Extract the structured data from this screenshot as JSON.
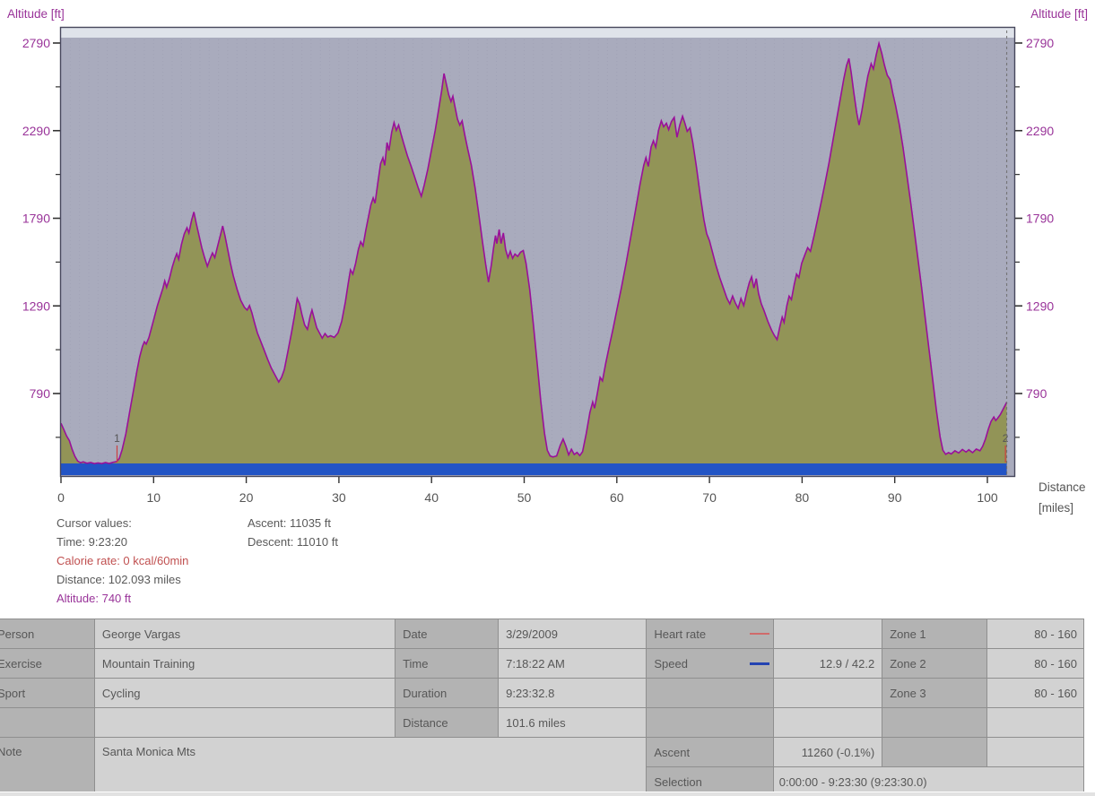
{
  "chart": {
    "y_axis_title_left": "Altitude [ft]",
    "y_axis_title_right": "Altitude [ft]",
    "x_axis_title_line1": "Distance",
    "x_axis_title_line2": "[miles]"
  },
  "chart_data": {
    "type": "area",
    "series_name": "Altitude",
    "title": "",
    "xlabel": "Distance [miles]",
    "ylabel": "Altitude [ft]",
    "x_ticks": [
      0,
      10,
      20,
      30,
      40,
      50,
      60,
      70,
      80,
      90,
      100
    ],
    "y_ticks": [
      790,
      1290,
      1790,
      2290,
      2790
    ],
    "y_minor_ticks": [
      540,
      1040,
      1540,
      2040,
      2540
    ],
    "x_range": [
      0,
      102.9
    ],
    "y_range_at_plot": [
      325,
      2880
    ],
    "grid": "faint dotted vertical",
    "legend_position": "none",
    "cursor_mile": 102.093,
    "cursor_altitude_ft": 740,
    "lap_markers": [
      {
        "label": "1",
        "mile": 6.05
      },
      {
        "label": "2",
        "mile": 101.95
      }
    ],
    "profile_mile_ft": [
      [
        0,
        620
      ],
      [
        0.3,
        585
      ],
      [
        0.6,
        548
      ],
      [
        0.9,
        522
      ],
      [
        1.2,
        472
      ],
      [
        1.5,
        432
      ],
      [
        1.8,
        405
      ],
      [
        2.1,
        395
      ],
      [
        2.4,
        400
      ],
      [
        2.8,
        392
      ],
      [
        3.2,
        396
      ],
      [
        3.6,
        390
      ],
      [
        4,
        394
      ],
      [
        4.4,
        390
      ],
      [
        4.8,
        396
      ],
      [
        5.2,
        391
      ],
      [
        5.6,
        397
      ],
      [
        6,
        402
      ],
      [
        6.3,
        420
      ],
      [
        6.6,
        470
      ],
      [
        7,
        560
      ],
      [
        7.4,
        680
      ],
      [
        7.8,
        800
      ],
      [
        8.2,
        920
      ],
      [
        8.5,
        1000
      ],
      [
        8.8,
        1060
      ],
      [
        9,
        1085
      ],
      [
        9.2,
        1072
      ],
      [
        9.5,
        1110
      ],
      [
        10,
        1210
      ],
      [
        10.4,
        1290
      ],
      [
        10.7,
        1340
      ],
      [
        11,
        1390
      ],
      [
        11.2,
        1432
      ],
      [
        11.4,
        1396
      ],
      [
        11.7,
        1446
      ],
      [
        12,
        1510
      ],
      [
        12.3,
        1562
      ],
      [
        12.5,
        1588
      ],
      [
        12.7,
        1556
      ],
      [
        13,
        1640
      ],
      [
        13.3,
        1700
      ],
      [
        13.6,
        1736
      ],
      [
        13.8,
        1706
      ],
      [
        14.1,
        1780
      ],
      [
        14.35,
        1826
      ],
      [
        14.6,
        1762
      ],
      [
        14.9,
        1692
      ],
      [
        15.2,
        1622
      ],
      [
        15.5,
        1566
      ],
      [
        15.8,
        1516
      ],
      [
        16.1,
        1560
      ],
      [
        16.35,
        1592
      ],
      [
        16.6,
        1566
      ],
      [
        16.9,
        1630
      ],
      [
        17.2,
        1692
      ],
      [
        17.45,
        1746
      ],
      [
        17.7,
        1692
      ],
      [
        18,
        1612
      ],
      [
        18.3,
        1532
      ],
      [
        18.6,
        1462
      ],
      [
        19,
        1386
      ],
      [
        19.4,
        1322
      ],
      [
        19.8,
        1282
      ],
      [
        20.1,
        1266
      ],
      [
        20.35,
        1292
      ],
      [
        20.6,
        1252
      ],
      [
        20.9,
        1192
      ],
      [
        21.2,
        1136
      ],
      [
        21.5,
        1096
      ],
      [
        21.9,
        1042
      ],
      [
        22.3,
        986
      ],
      [
        22.7,
        936
      ],
      [
        23.1,
        896
      ],
      [
        23.5,
        856
      ],
      [
        23.8,
        882
      ],
      [
        24.1,
        926
      ],
      [
        24.5,
        1032
      ],
      [
        24.9,
        1142
      ],
      [
        25.2,
        1232
      ],
      [
        25.5,
        1332
      ],
      [
        25.75,
        1302
      ],
      [
        26,
        1242
      ],
      [
        26.3,
        1182
      ],
      [
        26.6,
        1156
      ],
      [
        26.9,
        1232
      ],
      [
        27.1,
        1266
      ],
      [
        27.35,
        1216
      ],
      [
        27.6,
        1166
      ],
      [
        27.9,
        1136
      ],
      [
        28.2,
        1106
      ],
      [
        28.5,
        1132
      ],
      [
        28.8,
        1112
      ],
      [
        29.1,
        1120
      ],
      [
        29.5,
        1110
      ],
      [
        29.9,
        1136
      ],
      [
        30.3,
        1202
      ],
      [
        30.7,
        1312
      ],
      [
        31,
        1416
      ],
      [
        31.25,
        1496
      ],
      [
        31.5,
        1472
      ],
      [
        31.8,
        1532
      ],
      [
        32.1,
        1612
      ],
      [
        32.35,
        1656
      ],
      [
        32.6,
        1632
      ],
      [
        32.9,
        1722
      ],
      [
        33.2,
        1802
      ],
      [
        33.45,
        1866
      ],
      [
        33.7,
        1906
      ],
      [
        33.9,
        1876
      ],
      [
        34.2,
        1992
      ],
      [
        34.5,
        2102
      ],
      [
        34.75,
        2136
      ],
      [
        34.95,
        2092
      ],
      [
        35.2,
        2222
      ],
      [
        35.4,
        2176
      ],
      [
        35.7,
        2282
      ],
      [
        35.95,
        2336
      ],
      [
        36.2,
        2292
      ],
      [
        36.45,
        2322
      ],
      [
        36.7,
        2272
      ],
      [
        37,
        2216
      ],
      [
        37.4,
        2146
      ],
      [
        37.8,
        2086
      ],
      [
        38.2,
        2022
      ],
      [
        38.55,
        1966
      ],
      [
        38.9,
        1916
      ],
      [
        39.2,
        1976
      ],
      [
        39.6,
        2072
      ],
      [
        40,
        2182
      ],
      [
        40.4,
        2292
      ],
      [
        40.8,
        2422
      ],
      [
        41.1,
        2522
      ],
      [
        41.35,
        2616
      ],
      [
        41.6,
        2556
      ],
      [
        41.85,
        2496
      ],
      [
        42.1,
        2456
      ],
      [
        42.3,
        2486
      ],
      [
        42.55,
        2422
      ],
      [
        42.8,
        2356
      ],
      [
        43.05,
        2322
      ],
      [
        43.3,
        2346
      ],
      [
        43.6,
        2262
      ],
      [
        43.9,
        2186
      ],
      [
        44.3,
        2092
      ],
      [
        44.7,
        1962
      ],
      [
        45.1,
        1812
      ],
      [
        45.5,
        1656
      ],
      [
        45.85,
        1526
      ],
      [
        46.15,
        1426
      ],
      [
        46.45,
        1522
      ],
      [
        46.7,
        1622
      ],
      [
        46.9,
        1692
      ],
      [
        47.05,
        1646
      ],
      [
        47.3,
        1726
      ],
      [
        47.5,
        1646
      ],
      [
        47.75,
        1706
      ],
      [
        48,
        1612
      ],
      [
        48.25,
        1566
      ],
      [
        48.5,
        1602
      ],
      [
        48.75,
        1562
      ],
      [
        49,
        1586
      ],
      [
        49.3,
        1572
      ],
      [
        49.6,
        1596
      ],
      [
        49.9,
        1606
      ],
      [
        50.2,
        1532
      ],
      [
        50.6,
        1382
      ],
      [
        51,
        1182
      ],
      [
        51.4,
        962
      ],
      [
        51.8,
        742
      ],
      [
        52.2,
        562
      ],
      [
        52.5,
        466
      ],
      [
        52.8,
        434
      ],
      [
        53.1,
        428
      ],
      [
        53.5,
        434
      ],
      [
        53.9,
        496
      ],
      [
        54.2,
        530
      ],
      [
        54.5,
        490
      ],
      [
        54.8,
        440
      ],
      [
        55.1,
        472
      ],
      [
        55.4,
        442
      ],
      [
        55.7,
        454
      ],
      [
        56,
        436
      ],
      [
        56.3,
        458
      ],
      [
        56.7,
        562
      ],
      [
        57.1,
        682
      ],
      [
        57.4,
        742
      ],
      [
        57.6,
        706
      ],
      [
        57.9,
        792
      ],
      [
        58.2,
        882
      ],
      [
        58.45,
        862
      ],
      [
        58.8,
        962
      ],
      [
        59.2,
        1062
      ],
      [
        59.6,
        1162
      ],
      [
        60,
        1266
      ],
      [
        60.5,
        1396
      ],
      [
        61,
        1532
      ],
      [
        61.5,
        1682
      ],
      [
        62,
        1832
      ],
      [
        62.5,
        1982
      ],
      [
        62.9,
        2092
      ],
      [
        63.15,
        2136
      ],
      [
        63.4,
        2086
      ],
      [
        63.7,
        2196
      ],
      [
        63.95,
        2232
      ],
      [
        64.2,
        2196
      ],
      [
        64.5,
        2292
      ],
      [
        64.8,
        2346
      ],
      [
        65.05,
        2312
      ],
      [
        65.35,
        2332
      ],
      [
        65.6,
        2296
      ],
      [
        65.9,
        2342
      ],
      [
        66.2,
        2366
      ],
      [
        66.5,
        2252
      ],
      [
        66.8,
        2322
      ],
      [
        67.1,
        2372
      ],
      [
        67.35,
        2332
      ],
      [
        67.6,
        2286
      ],
      [
        67.9,
        2306
      ],
      [
        68.2,
        2222
      ],
      [
        68.6,
        2082
      ],
      [
        69,
        1922
      ],
      [
        69.4,
        1782
      ],
      [
        69.7,
        1702
      ],
      [
        70,
        1662
      ],
      [
        70.3,
        1602
      ],
      [
        70.7,
        1522
      ],
      [
        71.1,
        1452
      ],
      [
        71.5,
        1392
      ],
      [
        71.9,
        1332
      ],
      [
        72.2,
        1302
      ],
      [
        72.5,
        1346
      ],
      [
        72.8,
        1306
      ],
      [
        73.1,
        1276
      ],
      [
        73.4,
        1332
      ],
      [
        73.7,
        1292
      ],
      [
        74,
        1362
      ],
      [
        74.3,
        1422
      ],
      [
        74.55,
        1456
      ],
      [
        74.8,
        1392
      ],
      [
        75.05,
        1446
      ],
      [
        75.3,
        1362
      ],
      [
        75.6,
        1302
      ],
      [
        75.9,
        1262
      ],
      [
        76.3,
        1202
      ],
      [
        76.7,
        1152
      ],
      [
        77,
        1122
      ],
      [
        77.3,
        1098
      ],
      [
        77.6,
        1172
      ],
      [
        77.85,
        1226
      ],
      [
        78.05,
        1196
      ],
      [
        78.35,
        1292
      ],
      [
        78.6,
        1346
      ],
      [
        78.85,
        1326
      ],
      [
        79.15,
        1412
      ],
      [
        79.4,
        1472
      ],
      [
        79.65,
        1452
      ],
      [
        79.95,
        1532
      ],
      [
        80.3,
        1582
      ],
      [
        80.6,
        1622
      ],
      [
        80.9,
        1602
      ],
      [
        81.3,
        1692
      ],
      [
        81.7,
        1792
      ],
      [
        82.1,
        1892
      ],
      [
        82.5,
        1996
      ],
      [
        82.9,
        2106
      ],
      [
        83.3,
        2226
      ],
      [
        83.7,
        2346
      ],
      [
        84.1,
        2466
      ],
      [
        84.5,
        2586
      ],
      [
        84.8,
        2662
      ],
      [
        85.05,
        2702
      ],
      [
        85.3,
        2622
      ],
      [
        85.6,
        2502
      ],
      [
        85.9,
        2392
      ],
      [
        86.15,
        2322
      ],
      [
        86.45,
        2402
      ],
      [
        86.8,
        2512
      ],
      [
        87.1,
        2602
      ],
      [
        87.45,
        2672
      ],
      [
        87.7,
        2642
      ],
      [
        88,
        2722
      ],
      [
        88.3,
        2788
      ],
      [
        88.6,
        2732
      ],
      [
        88.9,
        2662
      ],
      [
        89.2,
        2606
      ],
      [
        89.5,
        2582
      ],
      [
        89.8,
        2502
      ],
      [
        90.1,
        2432
      ],
      [
        90.5,
        2322
      ],
      [
        90.9,
        2192
      ],
      [
        91.3,
        2042
      ],
      [
        91.7,
        1886
      ],
      [
        92.1,
        1726
      ],
      [
        92.5,
        1562
      ],
      [
        92.9,
        1392
      ],
      [
        93.3,
        1216
      ],
      [
        93.7,
        1042
      ],
      [
        94.1,
        866
      ],
      [
        94.5,
        692
      ],
      [
        94.9,
        542
      ],
      [
        95.2,
        466
      ],
      [
        95.5,
        443
      ],
      [
        95.8,
        453
      ],
      [
        96.1,
        445
      ],
      [
        96.5,
        463
      ],
      [
        96.9,
        451
      ],
      [
        97.3,
        471
      ],
      [
        97.7,
        456
      ],
      [
        98,
        469
      ],
      [
        98.4,
        453
      ],
      [
        98.8,
        473
      ],
      [
        99.2,
        463
      ],
      [
        99.5,
        489
      ],
      [
        99.8,
        531
      ],
      [
        100.1,
        586
      ],
      [
        100.4,
        631
      ],
      [
        100.7,
        656
      ],
      [
        100.9,
        636
      ],
      [
        101.1,
        649
      ],
      [
        101.4,
        671
      ],
      [
        101.7,
        701
      ],
      [
        101.9,
        721
      ],
      [
        102.09,
        740
      ]
    ]
  },
  "cursor_panel": {
    "title": "Cursor values:",
    "time": "Time: 9:23:20",
    "calorie_rate": "Calorie rate: 0 kcal/60min",
    "distance": "Distance: 102.093 miles",
    "altitude": "Altitude: 740 ft",
    "ascent": "Ascent: 11035 ft",
    "descent": "Descent: 11010 ft"
  },
  "table": {
    "person_label": "Person",
    "person_value": "George Vargas",
    "exercise_label": "Exercise",
    "exercise_value": "Mountain Training",
    "sport_label": "Sport",
    "sport_value": "Cycling",
    "note_label": "Note",
    "note_value": "Santa Monica Mts",
    "date_label": "Date",
    "date_value": "3/29/2009",
    "time_label": "Time",
    "time_value": "7:18:22 AM",
    "duration_label": "Duration",
    "duration_value": "9:23:32.8",
    "distance_label": "Distance",
    "distance_value": "101.6 miles",
    "heart_rate_label": "Heart rate",
    "speed_label": "Speed",
    "speed_value": "12.9 / 42.2",
    "ascent_label": "Ascent",
    "ascent_value": "11260 (-0.1%)",
    "selection_label": "Selection",
    "selection_value": "0:00:00 - 9:23:30 (9:23:30.0)",
    "zone1_label": "Zone 1",
    "zone1_value": "80 - 160",
    "zone2_label": "Zone 2",
    "zone2_value": "80 - 160",
    "zone3_label": "Zone 3",
    "zone3_value": "80 - 160"
  },
  "colors": {
    "plot_bg": "#a9abbd",
    "plot_top_strip": "#dfe3ea",
    "area_fill": "#929457",
    "profile_line": "#9a109a",
    "blue_bar": "#2254c5",
    "axis_purple": "#993399",
    "axis_gray": "#555555",
    "plot_border": "#47475c",
    "marker_red": "#cc4040",
    "cursor_dash": "#707070"
  }
}
